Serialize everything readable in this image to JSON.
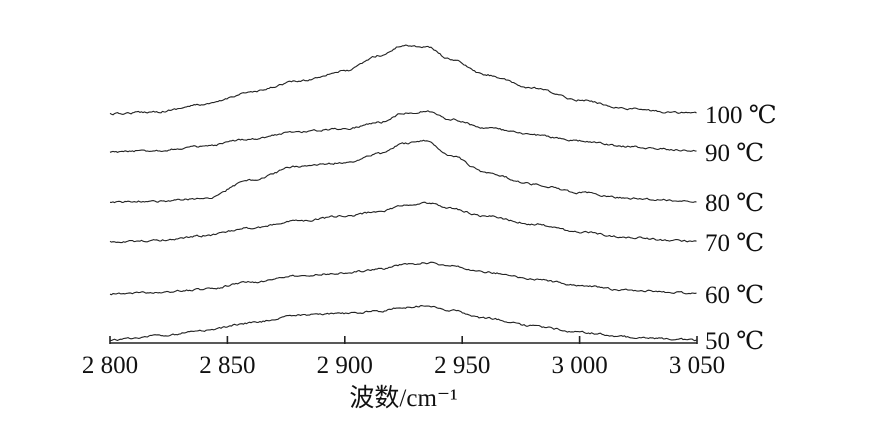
{
  "chart_data": {
    "type": "line",
    "title": "",
    "xlabel": "波数/cm⁻¹",
    "ylabel": "",
    "xlim": [
      2800,
      3050
    ],
    "x_ticks": [
      {
        "value": 2800,
        "label": "2 800"
      },
      {
        "value": 2850,
        "label": "2 850"
      },
      {
        "value": 2900,
        "label": "2 900"
      },
      {
        "value": 2950,
        "label": "2 950"
      },
      {
        "value": 3000,
        "label": "3 000"
      },
      {
        "value": 3050,
        "label": "3 050"
      }
    ],
    "y_axis_shown": false,
    "grid": false,
    "legend": "none",
    "series_note": "Stacked spectra, each labeled at right end",
    "series": [
      {
        "name": "100 ℃",
        "x": [
          2800,
          2820,
          2840,
          2860,
          2880,
          2900,
          2915,
          2925,
          2935,
          2945,
          2960,
          2980,
          3000,
          3020,
          3040,
          3050
        ],
        "y": [
          0.0,
          0.03,
          0.12,
          0.28,
          0.42,
          0.55,
          0.75,
          0.88,
          0.86,
          0.7,
          0.5,
          0.33,
          0.18,
          0.07,
          0.02,
          0.01
        ]
      },
      {
        "name": "90 ℃",
        "x": [
          2800,
          2820,
          2840,
          2860,
          2880,
          2900,
          2915,
          2925,
          2935,
          2945,
          2960,
          2980,
          3000,
          3020,
          3040,
          3050
        ],
        "y": [
          0.0,
          0.02,
          0.07,
          0.17,
          0.26,
          0.3,
          0.38,
          0.5,
          0.52,
          0.42,
          0.31,
          0.22,
          0.14,
          0.07,
          0.03,
          0.01
        ]
      },
      {
        "name": "80 ℃",
        "x": [
          2800,
          2820,
          2840,
          2860,
          2880,
          2900,
          2915,
          2925,
          2935,
          2945,
          2960,
          2980,
          3000,
          3020,
          3040,
          3050
        ],
        "y": [
          0.0,
          0.01,
          0.04,
          0.28,
          0.46,
          0.5,
          0.62,
          0.75,
          0.78,
          0.6,
          0.38,
          0.23,
          0.12,
          0.05,
          0.02,
          0.01
        ]
      },
      {
        "name": "70 ℃",
        "x": [
          2800,
          2820,
          2840,
          2860,
          2880,
          2900,
          2915,
          2925,
          2935,
          2945,
          2960,
          2980,
          3000,
          3020,
          3040,
          3050
        ],
        "y": [
          0.0,
          0.02,
          0.08,
          0.18,
          0.27,
          0.33,
          0.39,
          0.47,
          0.5,
          0.43,
          0.33,
          0.23,
          0.13,
          0.06,
          0.02,
          0.01
        ]
      },
      {
        "name": "60 ℃",
        "x": [
          2800,
          2820,
          2840,
          2860,
          2880,
          2900,
          2915,
          2925,
          2935,
          2945,
          2960,
          2980,
          3000,
          3020,
          3040,
          3050
        ],
        "y": [
          0.0,
          0.02,
          0.06,
          0.15,
          0.23,
          0.27,
          0.32,
          0.38,
          0.4,
          0.37,
          0.28,
          0.19,
          0.11,
          0.05,
          0.02,
          0.01
        ]
      },
      {
        "name": "50 ℃",
        "x": [
          2800,
          2820,
          2840,
          2860,
          2880,
          2900,
          2915,
          2925,
          2935,
          2945,
          2960,
          2980,
          3000,
          3020,
          3040,
          3050
        ],
        "y": [
          0.0,
          0.05,
          0.12,
          0.22,
          0.32,
          0.34,
          0.37,
          0.42,
          0.44,
          0.38,
          0.28,
          0.18,
          0.1,
          0.04,
          0.01,
          0.0
        ]
      }
    ]
  }
}
